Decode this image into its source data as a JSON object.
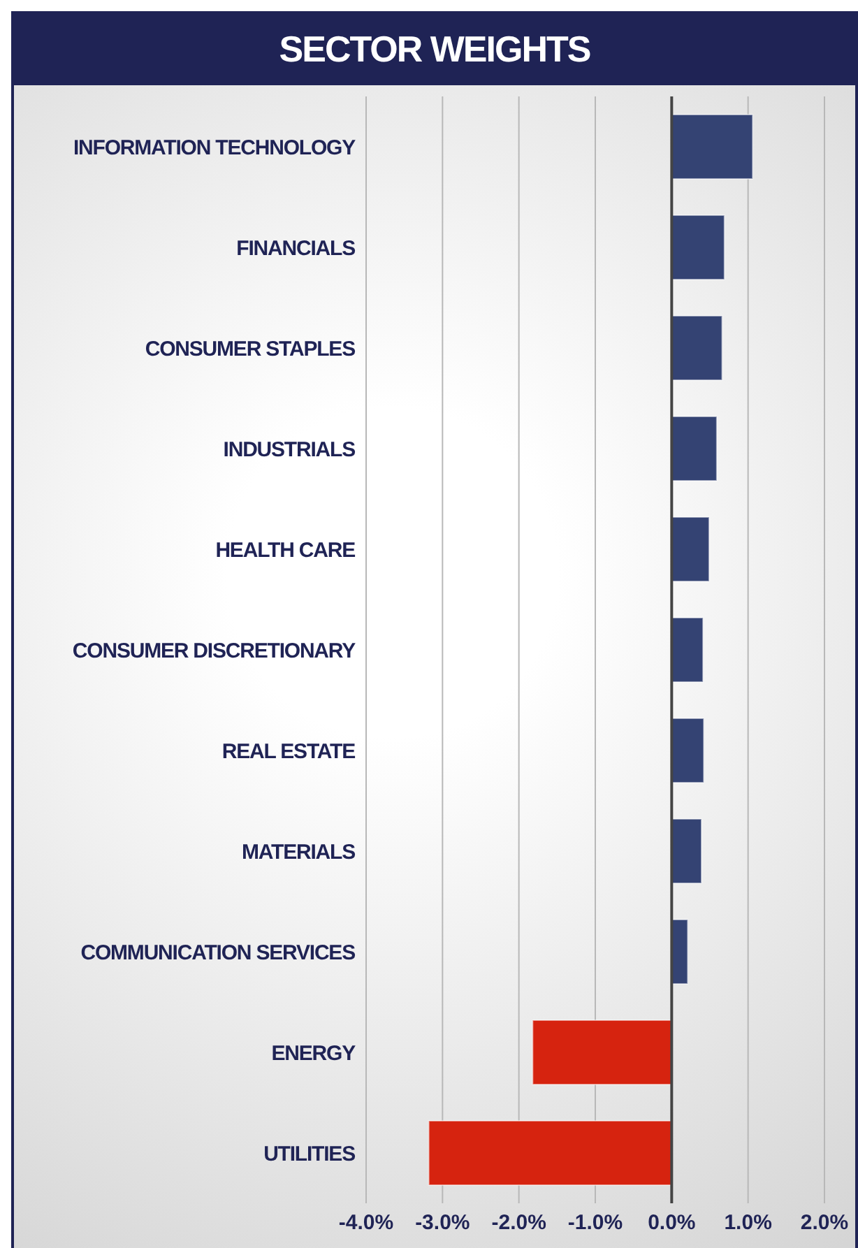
{
  "chart_data": {
    "type": "bar",
    "title": "SECTOR WEIGHTS",
    "orientation": "horizontal",
    "categories": [
      "INFORMATION TECHNOLOGY",
      "FINANCIALS",
      "CONSUMER STAPLES",
      "INDUSTRIALS",
      "HEALTH CARE",
      "CONSUMER DISCRETIONARY",
      "REAL ESTATE",
      "MATERIALS",
      "COMMUNICATION SERVICES",
      "ENERGY",
      "UTILITIES"
    ],
    "values": [
      1.06,
      0.69,
      0.66,
      0.59,
      0.49,
      0.41,
      0.42,
      0.39,
      0.21,
      -1.82,
      -3.18
    ],
    "colors": [
      "#344373",
      "#344373",
      "#344373",
      "#344373",
      "#344373",
      "#344373",
      "#344373",
      "#344373",
      "#344373",
      "#d6230f",
      "#d6230f"
    ],
    "xlim": [
      -4,
      2
    ],
    "xticks": [
      {
        "value": -4,
        "label": "-4.0%"
      },
      {
        "value": -3,
        "label": "-3.0%"
      },
      {
        "value": -2,
        "label": "-2.0%"
      },
      {
        "value": -1,
        "label": "-1.0%"
      },
      {
        "value": 0,
        "label": "0.0%"
      },
      {
        "value": 1,
        "label": "1.0%"
      },
      {
        "value": 2,
        "label": "2.0%"
      }
    ],
    "grid": "x"
  }
}
